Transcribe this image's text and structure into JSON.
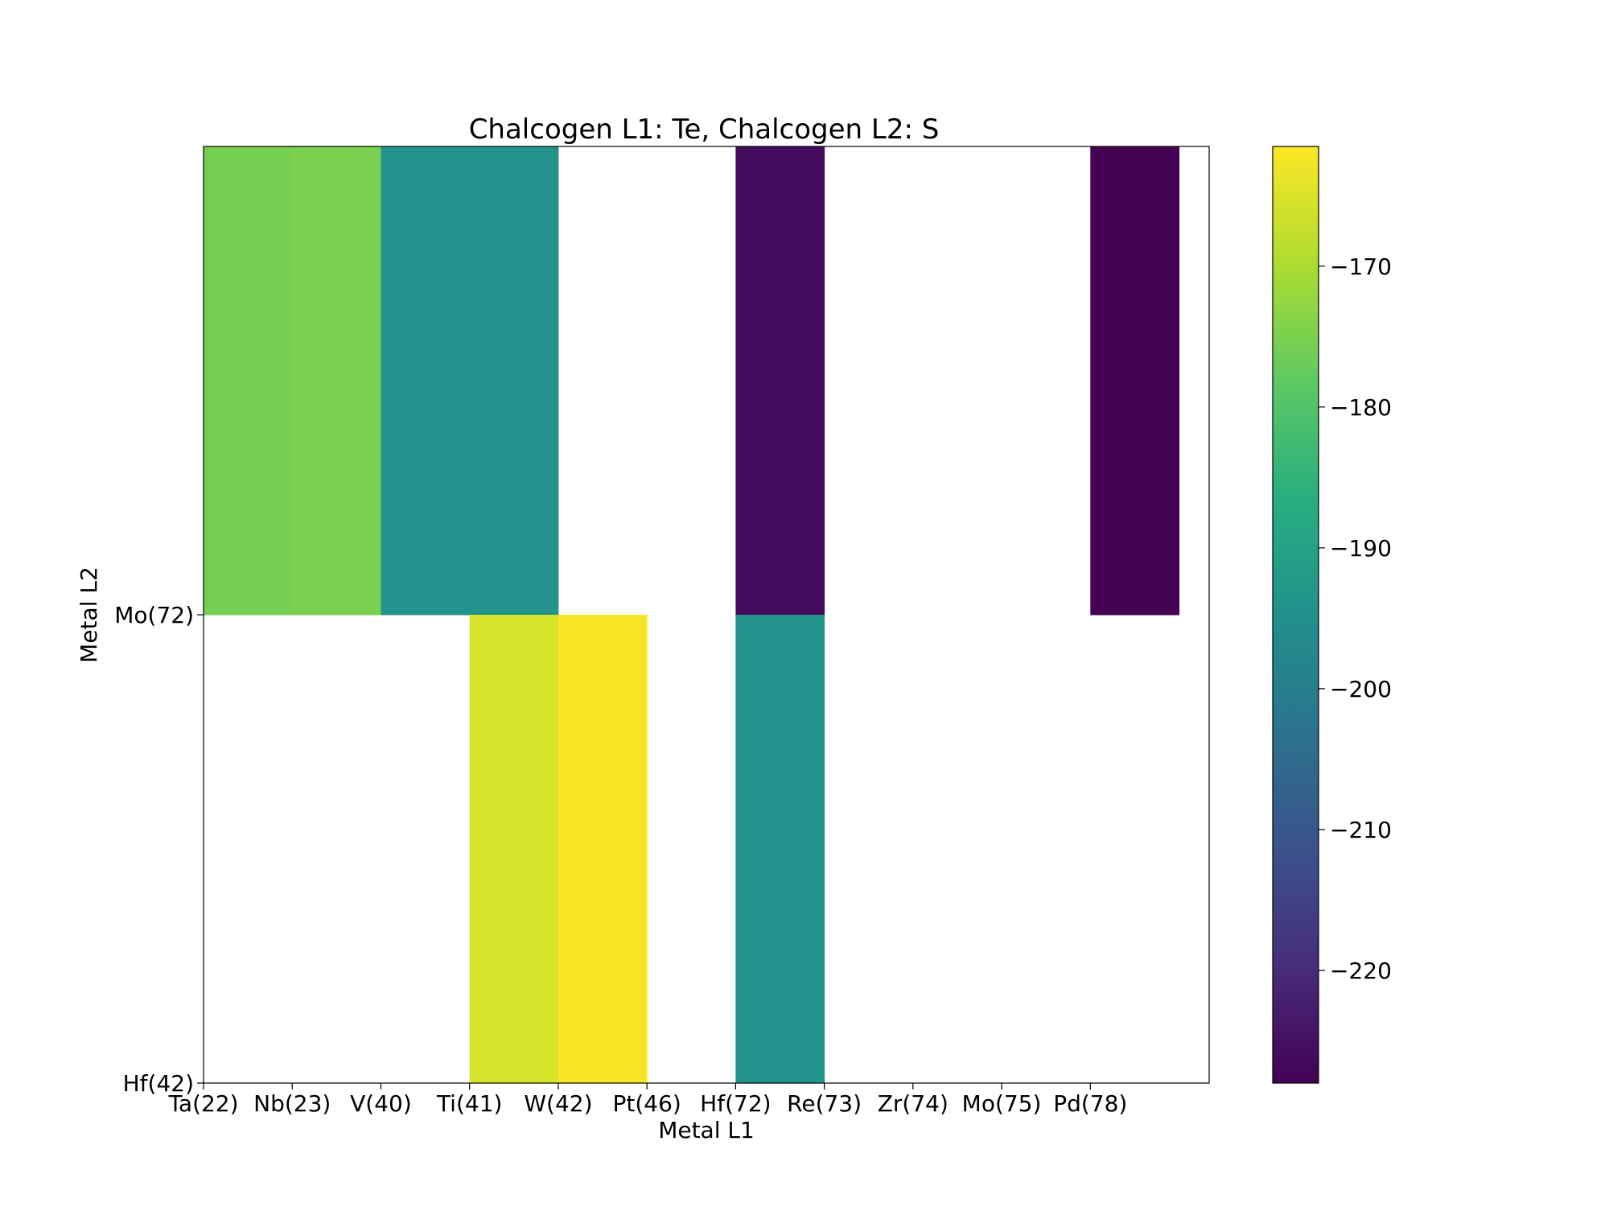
{
  "chart_data": {
    "type": "heatmap",
    "title": "Chalcogen L1: Te, Chalcogen L2: S",
    "xlabel": "Metal L1",
    "ylabel": "Metal L2",
    "x_tick_labels": [
      "Ta(22)",
      "Nb(23)",
      "V(40)",
      "Ti(41)",
      "W(42)",
      "Pt(46)",
      "Hf(72)",
      "Re(73)",
      "Zr(74)",
      "Mo(75)",
      "Pd(78)"
    ],
    "y_tick_labels": [
      "Mo(72)",
      "Hf(42)"
    ],
    "rows": [
      "Mo(72)",
      "Hf(42)"
    ],
    "columns": [
      "Ta(22)",
      "Nb(23)",
      "V(40)",
      "Ti(41)",
      "W(42)",
      "Pt(46)",
      "Hf(72)",
      "Re(73)",
      "Zr(74)",
      "Mo(75)",
      "Pd(78)"
    ],
    "values": [
      [
        -175.5,
        -175.0,
        -194.0,
        -194.0,
        null,
        null,
        -226.0,
        null,
        null,
        null,
        -228.0
      ],
      [
        null,
        null,
        null,
        -165.5,
        -162.0,
        null,
        -194.0,
        null,
        null,
        null,
        null
      ]
    ],
    "colorbar": {
      "colormap": "viridis",
      "vmin": -228.0,
      "vmax": -161.5,
      "ticks": [
        -170,
        -180,
        -190,
        -200,
        -210,
        -220
      ],
      "tick_labels": [
        "−170",
        "−180",
        "−190",
        "−200",
        "−210",
        "−220"
      ]
    },
    "grid": false
  }
}
